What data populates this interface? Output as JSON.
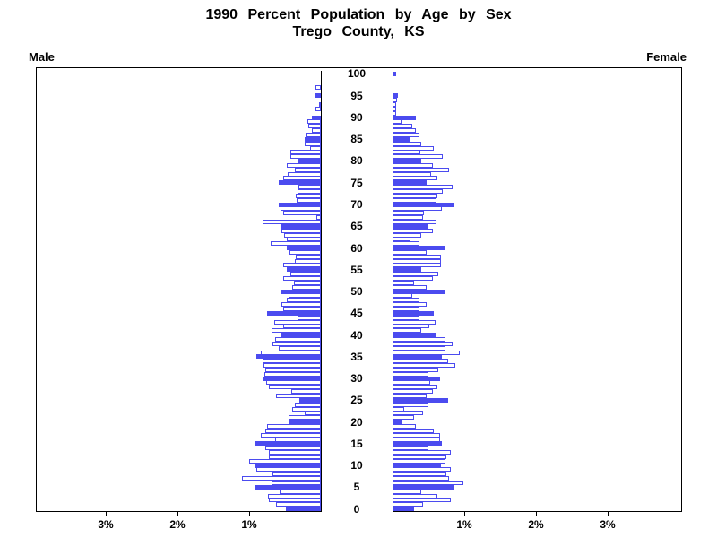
{
  "title": {
    "line1": "1990 Percent Population by Age by Sex",
    "line2": "Trego County, KS"
  },
  "panel_labels": {
    "left": "Male",
    "right": "Female"
  },
  "chart_data": {
    "type": "bar",
    "variant": "population_pyramid",
    "title": "1990 Percent Population by Age by Sex",
    "subtitle": "Trego County, KS",
    "left_series_label": "Male",
    "right_series_label": "Female",
    "unit": "percent of total population",
    "age_min": 0,
    "age_max": 100,
    "age_tick_interval": 5,
    "age_tick_labels": [
      "0",
      "5",
      "10",
      "15",
      "20",
      "25",
      "30",
      "35",
      "40",
      "45",
      "50",
      "55",
      "60",
      "65",
      "70",
      "75",
      "80",
      "85",
      "90",
      "95",
      "100"
    ],
    "x_tick_labels_left": [
      "3%",
      "2%",
      "1%"
    ],
    "x_tick_labels_right": [
      "1%",
      "2%",
      "3%"
    ],
    "x_tick_step_percent": 1,
    "x_max_percent": 4,
    "grid": false,
    "highlight_rule": "bars at ages divisible by 5 are solid filled; other ages are white with blue outline",
    "colors": {
      "bar": "#4b4bef",
      "bar_unfilled_face": "#ffffff",
      "axis": "#000000",
      "text": "#000000",
      "background": "#ffffff"
    },
    "series": [
      {
        "name": "Male",
        "side": "left",
        "ages": "0 to 100 ascending",
        "values_percent": [
          0.49,
          0.63,
          0.73,
          0.74,
          0.57,
          0.93,
          0.69,
          1.1,
          0.67,
          0.9,
          0.93,
          1.0,
          0.73,
          0.73,
          0.77,
          0.93,
          0.64,
          0.84,
          0.77,
          0.75,
          0.44,
          0.45,
          0.22,
          0.4,
          0.36,
          0.3,
          0.63,
          0.41,
          0.73,
          0.76,
          0.81,
          0.79,
          0.77,
          0.8,
          0.81,
          0.9,
          0.84,
          0.59,
          0.67,
          0.64,
          0.55,
          0.69,
          0.53,
          0.65,
          0.33,
          0.75,
          0.52,
          0.55,
          0.47,
          0.45,
          0.55,
          0.4,
          0.38,
          0.53,
          0.42,
          0.48,
          0.53,
          0.36,
          0.35,
          0.44,
          0.47,
          0.7,
          0.47,
          0.51,
          0.55,
          0.56,
          0.81,
          0.06,
          0.53,
          0.56,
          0.59,
          0.34,
          0.35,
          0.32,
          0.31,
          0.59,
          0.52,
          0.46,
          0.36,
          0.48,
          0.32,
          0.43,
          0.42,
          0.15,
          0.23,
          0.23,
          0.21,
          0.12,
          0.17,
          0.19,
          0.13,
          0.0,
          0.08,
          0.03,
          0.0,
          0.08,
          0.0,
          0.07,
          0.0,
          0.0,
          0.0
        ]
      },
      {
        "name": "Female",
        "side": "right",
        "ages": "0 to 100 ascending",
        "values_percent": [
          0.3,
          0.43,
          0.81,
          0.62,
          0.4,
          0.86,
          0.99,
          0.79,
          0.75,
          0.81,
          0.68,
          0.74,
          0.75,
          0.81,
          0.5,
          0.69,
          0.66,
          0.66,
          0.57,
          0.32,
          0.12,
          0.3,
          0.42,
          0.16,
          0.5,
          0.77,
          0.47,
          0.56,
          0.62,
          0.53,
          0.66,
          0.5,
          0.64,
          0.87,
          0.78,
          0.69,
          0.94,
          0.74,
          0.84,
          0.74,
          0.6,
          0.4,
          0.51,
          0.6,
          0.38,
          0.57,
          0.37,
          0.47,
          0.37,
          0.27,
          0.74,
          0.47,
          0.3,
          0.56,
          0.64,
          0.4,
          0.68,
          0.68,
          0.68,
          0.47,
          0.74,
          0.38,
          0.25,
          0.4,
          0.56,
          0.5,
          0.61,
          0.43,
          0.44,
          0.69,
          0.85,
          0.61,
          0.62,
          0.7,
          0.84,
          0.47,
          0.62,
          0.54,
          0.79,
          0.56,
          0.4,
          0.7,
          0.39,
          0.57,
          0.4,
          0.25,
          0.38,
          0.33,
          0.27,
          0.13,
          0.33,
          0.05,
          0.05,
          0.05,
          0.06,
          0.08,
          0.0,
          0.0,
          0.0,
          0.0,
          0.05
        ]
      }
    ]
  }
}
